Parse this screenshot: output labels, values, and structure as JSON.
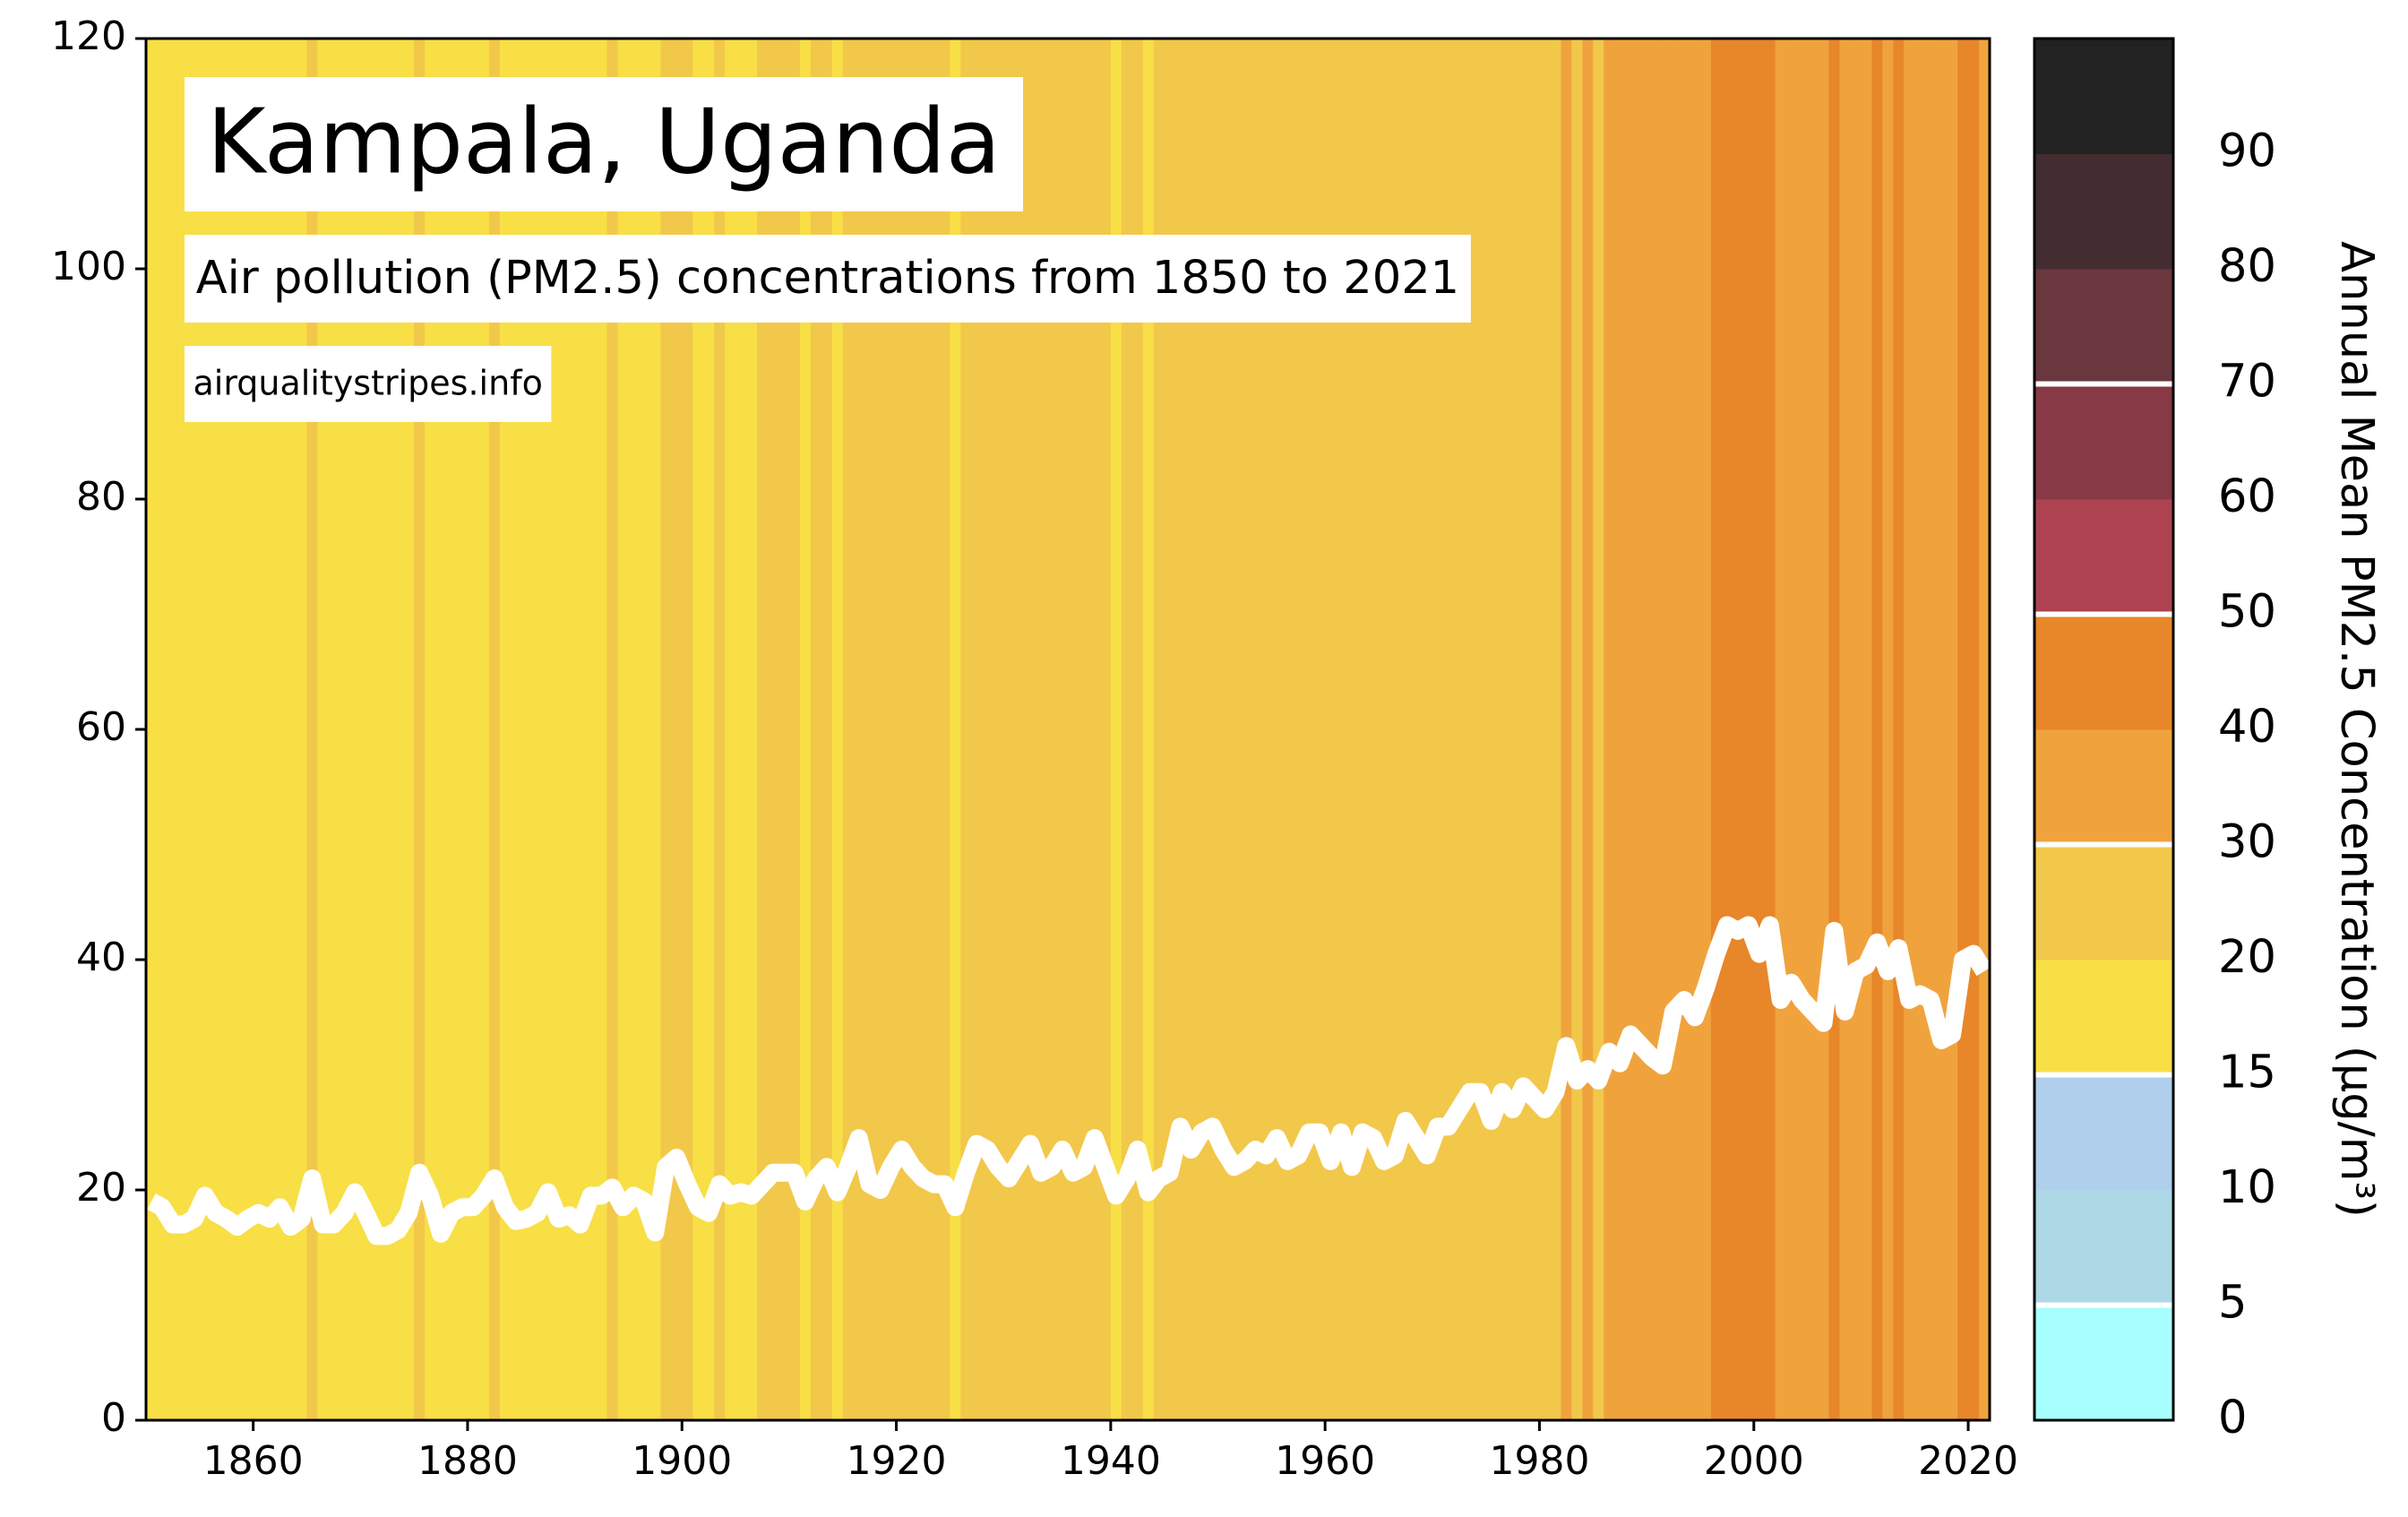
{
  "chart_data": {
    "type": "line",
    "title": "Kampala, Uganda",
    "subtitle": "Air pollution (PM2.5) concentrations from 1850 to 2021",
    "source": "airqualitystripes.info",
    "line_color": "#ffffff",
    "x": [
      1850,
      1851,
      1852,
      1853,
      1854,
      1855,
      1856,
      1857,
      1858,
      1859,
      1860,
      1861,
      1862,
      1863,
      1864,
      1865,
      1866,
      1867,
      1868,
      1869,
      1870,
      1871,
      1872,
      1873,
      1874,
      1875,
      1876,
      1877,
      1878,
      1879,
      1880,
      1881,
      1882,
      1883,
      1884,
      1885,
      1886,
      1887,
      1888,
      1889,
      1890,
      1891,
      1892,
      1893,
      1894,
      1895,
      1896,
      1897,
      1898,
      1899,
      1900,
      1901,
      1902,
      1903,
      1904,
      1905,
      1906,
      1907,
      1908,
      1909,
      1910,
      1911,
      1912,
      1913,
      1914,
      1915,
      1916,
      1917,
      1918,
      1919,
      1920,
      1921,
      1922,
      1923,
      1924,
      1925,
      1926,
      1927,
      1928,
      1929,
      1930,
      1931,
      1932,
      1933,
      1934,
      1935,
      1936,
      1937,
      1938,
      1939,
      1940,
      1941,
      1942,
      1943,
      1944,
      1945,
      1946,
      1947,
      1948,
      1949,
      1950,
      1951,
      1952,
      1953,
      1954,
      1955,
      1956,
      1957,
      1958,
      1959,
      1960,
      1961,
      1962,
      1963,
      1964,
      1965,
      1966,
      1967,
      1968,
      1969,
      1970,
      1971,
      1972,
      1973,
      1974,
      1975,
      1976,
      1977,
      1978,
      1979,
      1980,
      1981,
      1982,
      1983,
      1984,
      1985,
      1986,
      1987,
      1988,
      1989,
      1990,
      1991,
      1992,
      1993,
      1994,
      1995,
      1996,
      1997,
      1998,
      1999,
      2000,
      2001,
      2002,
      2003,
      2004,
      2005,
      2006,
      2007,
      2008,
      2009,
      2010,
      2011,
      2012,
      2013,
      2014,
      2015,
      2016,
      2017,
      2018,
      2019,
      2020,
      2021
    ],
    "values": [
      19,
      18.5,
      17,
      17,
      17.5,
      19.5,
      18,
      17.5,
      16.8,
      17.5,
      18,
      17.5,
      18.5,
      16.8,
      17.5,
      21,
      17,
      17,
      18,
      19.8,
      18,
      16,
      16,
      16.5,
      18,
      21.5,
      19.5,
      16.2,
      18,
      18.5,
      18.5,
      19.5,
      21,
      18.5,
      17.3,
      17.5,
      18,
      19.8,
      17.5,
      17.8,
      17,
      19.5,
      19.5,
      20.2,
      18.5,
      19.5,
      19,
      16.3,
      22,
      22.8,
      20.5,
      18.5,
      18,
      20.5,
      19.5,
      19.8,
      19.5,
      20.5,
      21.5,
      21.5,
      21.5,
      19,
      21,
      22,
      19.8,
      22,
      24.5,
      20.5,
      20,
      22,
      23.5,
      22,
      21,
      20.5,
      20.5,
      18.5,
      21.5,
      24,
      23.5,
      22,
      21,
      22.5,
      24,
      21.5,
      22,
      23.5,
      21.5,
      22,
      24.5,
      22,
      19.5,
      21,
      23.5,
      19.8,
      21,
      21.5,
      25.5,
      23.5,
      25,
      25.5,
      23.5,
      22,
      22.5,
      23.5,
      23,
      24.5,
      22.5,
      23,
      25,
      25,
      22.5,
      25,
      22,
      25,
      24.5,
      22.5,
      23,
      26,
      24.5,
      23,
      25.5,
      25.5,
      27,
      28.5,
      28.5,
      26,
      28.5,
      27,
      29,
      28,
      27,
      28.5,
      32.5,
      29.5,
      30.5,
      29.5,
      32,
      31,
      33.5,
      32.5,
      31.5,
      30.8,
      35.5,
      36.5,
      35,
      37.5,
      40.5,
      43,
      42.5,
      43,
      40.5,
      43,
      36.5,
      38,
      36.5,
      35.5,
      34.5,
      42.5,
      35.5,
      39,
      39.5,
      41.5,
      39,
      41,
      36.5,
      37,
      36.5,
      33,
      33.5,
      40,
      40.5,
      39
    ],
    "xlim": [
      1850,
      2022
    ],
    "ylim": [
      0,
      120
    ],
    "xticks": [
      1860,
      1880,
      1900,
      1920,
      1940,
      1960,
      1980,
      2000,
      2020
    ],
    "yticks": [
      0,
      20,
      40,
      60,
      80,
      100,
      120
    ],
    "colorbar": {
      "label": "Annual Mean PM2.5 Concentration (μg/m³)",
      "bounds": [
        0,
        5,
        10,
        15,
        20,
        30,
        40,
        50,
        60,
        70,
        80,
        90,
        100
      ],
      "colors": [
        "#a8ffff",
        "#add8e6",
        "#b0cfec",
        "#f8df46",
        "#f2c84b",
        "#f0a33d",
        "#e7872a",
        "#ad4351",
        "#873a46",
        "#6a373e",
        "#432d31",
        "#222222"
      ],
      "ticks": [
        0,
        5,
        10,
        15,
        20,
        30,
        40,
        50,
        60,
        70,
        80,
        90
      ],
      "reference_lines": [
        5,
        15,
        30,
        50,
        70
      ]
    }
  }
}
